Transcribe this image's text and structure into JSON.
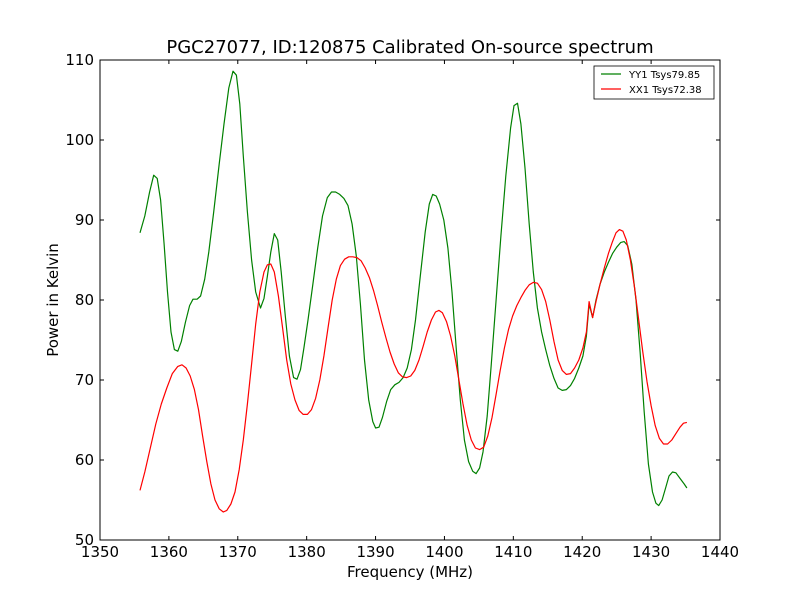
{
  "chart_data": {
    "type": "line",
    "title": "PGC27077, ID:120875 Calibrated On-source spectrum",
    "xlabel": "Frequency (MHz)",
    "ylabel": "Power in Kelvin",
    "xlim": [
      1350,
      1440
    ],
    "ylim": [
      50,
      110
    ],
    "xticks": [
      1350,
      1360,
      1370,
      1380,
      1390,
      1400,
      1410,
      1420,
      1430,
      1440
    ],
    "yticks": [
      50,
      60,
      70,
      80,
      90,
      100,
      110
    ],
    "grid": false,
    "legend_position": "top-right",
    "series": [
      {
        "name": "YY1 Tsys79.85",
        "color": "#008000",
        "points": [
          [
            1355.8,
            88.4
          ],
          [
            1356.5,
            90.5
          ],
          [
            1357.2,
            93.5
          ],
          [
            1357.8,
            95.6
          ],
          [
            1358.3,
            95.2
          ],
          [
            1358.8,
            92.5
          ],
          [
            1359.3,
            87.0
          ],
          [
            1359.8,
            81.0
          ],
          [
            1360.3,
            76.0
          ],
          [
            1360.8,
            73.8
          ],
          [
            1361.3,
            73.6
          ],
          [
            1361.8,
            74.8
          ],
          [
            1362.4,
            77.2
          ],
          [
            1363.0,
            79.3
          ],
          [
            1363.5,
            80.1
          ],
          [
            1364.1,
            80.1
          ],
          [
            1364.6,
            80.5
          ],
          [
            1365.2,
            82.6
          ],
          [
            1365.8,
            86.0
          ],
          [
            1366.5,
            91.0
          ],
          [
            1367.3,
            97.0
          ],
          [
            1368.0,
            102.0
          ],
          [
            1368.7,
            106.5
          ],
          [
            1369.3,
            108.6
          ],
          [
            1369.8,
            108.1
          ],
          [
            1370.3,
            104.5
          ],
          [
            1370.8,
            98.0
          ],
          [
            1371.4,
            91.0
          ],
          [
            1372.0,
            85.0
          ],
          [
            1372.6,
            81.0
          ],
          [
            1373.3,
            79.0
          ],
          [
            1373.8,
            80.2
          ],
          [
            1374.3,
            83.0
          ],
          [
            1374.8,
            86.0
          ],
          [
            1375.3,
            88.3
          ],
          [
            1375.8,
            87.5
          ],
          [
            1376.3,
            83.5
          ],
          [
            1376.9,
            78.0
          ],
          [
            1377.5,
            73.0
          ],
          [
            1378.1,
            70.3
          ],
          [
            1378.6,
            70.1
          ],
          [
            1379.1,
            71.3
          ],
          [
            1379.6,
            74.0
          ],
          [
            1380.2,
            77.5
          ],
          [
            1380.9,
            82.0
          ],
          [
            1381.6,
            86.5
          ],
          [
            1382.3,
            90.5
          ],
          [
            1383.0,
            92.8
          ],
          [
            1383.6,
            93.5
          ],
          [
            1384.2,
            93.5
          ],
          [
            1384.8,
            93.2
          ],
          [
            1385.4,
            92.7
          ],
          [
            1386.0,
            91.8
          ],
          [
            1386.6,
            89.5
          ],
          [
            1387.2,
            85.5
          ],
          [
            1387.8,
            79.5
          ],
          [
            1388.4,
            72.5
          ],
          [
            1389.0,
            67.5
          ],
          [
            1389.6,
            64.8
          ],
          [
            1390.0,
            64.0
          ],
          [
            1390.5,
            64.1
          ],
          [
            1391.0,
            65.3
          ],
          [
            1391.6,
            67.3
          ],
          [
            1392.2,
            68.8
          ],
          [
            1392.8,
            69.4
          ],
          [
            1393.4,
            69.7
          ],
          [
            1394.0,
            70.3
          ],
          [
            1394.6,
            71.5
          ],
          [
            1395.2,
            73.8
          ],
          [
            1395.8,
            77.5
          ],
          [
            1396.5,
            83.0
          ],
          [
            1397.2,
            88.5
          ],
          [
            1397.8,
            92.0
          ],
          [
            1398.3,
            93.2
          ],
          [
            1398.8,
            93.0
          ],
          [
            1399.3,
            92.0
          ],
          [
            1399.9,
            90.0
          ],
          [
            1400.5,
            86.5
          ],
          [
            1401.1,
            81.0
          ],
          [
            1401.7,
            74.0
          ],
          [
            1402.3,
            67.5
          ],
          [
            1402.9,
            62.5
          ],
          [
            1403.5,
            59.8
          ],
          [
            1404.1,
            58.6
          ],
          [
            1404.6,
            58.3
          ],
          [
            1405.1,
            59.0
          ],
          [
            1405.6,
            61.0
          ],
          [
            1406.2,
            65.5
          ],
          [
            1406.8,
            72.0
          ],
          [
            1407.5,
            80.0
          ],
          [
            1408.2,
            88.0
          ],
          [
            1408.9,
            95.5
          ],
          [
            1409.6,
            101.5
          ],
          [
            1410.1,
            104.3
          ],
          [
            1410.6,
            104.6
          ],
          [
            1411.1,
            102.0
          ],
          [
            1411.7,
            96.5
          ],
          [
            1412.3,
            89.5
          ],
          [
            1412.9,
            83.5
          ],
          [
            1413.5,
            79.0
          ],
          [
            1414.1,
            76.0
          ],
          [
            1414.7,
            73.8
          ],
          [
            1415.3,
            71.8
          ],
          [
            1415.9,
            70.2
          ],
          [
            1416.5,
            69.0
          ],
          [
            1417.1,
            68.7
          ],
          [
            1417.7,
            68.8
          ],
          [
            1418.3,
            69.3
          ],
          [
            1418.9,
            70.2
          ],
          [
            1419.5,
            71.5
          ],
          [
            1420.1,
            73.0
          ],
          [
            1420.6,
            75.5
          ],
          [
            1421.0,
            79.5
          ],
          [
            1421.5,
            77.8
          ],
          [
            1422.0,
            80.0
          ],
          [
            1422.6,
            82.0
          ],
          [
            1423.2,
            83.5
          ],
          [
            1423.8,
            84.7
          ],
          [
            1424.4,
            85.8
          ],
          [
            1425.0,
            86.6
          ],
          [
            1425.6,
            87.2
          ],
          [
            1426.1,
            87.3
          ],
          [
            1426.6,
            86.8
          ],
          [
            1427.2,
            84.5
          ],
          [
            1427.8,
            80.0
          ],
          [
            1428.4,
            73.5
          ],
          [
            1429.0,
            66.0
          ],
          [
            1429.6,
            59.5
          ],
          [
            1430.2,
            56.0
          ],
          [
            1430.7,
            54.6
          ],
          [
            1431.1,
            54.3
          ],
          [
            1431.6,
            55.0
          ],
          [
            1432.1,
            56.5
          ],
          [
            1432.6,
            58.0
          ],
          [
            1433.1,
            58.5
          ],
          [
            1433.6,
            58.4
          ],
          [
            1434.2,
            57.7
          ],
          [
            1434.8,
            57.0
          ],
          [
            1435.2,
            56.5
          ]
        ]
      },
      {
        "name": "XX1 Tsys72.38",
        "color": "#ff0000",
        "points": [
          [
            1355.8,
            56.2
          ],
          [
            1356.5,
            58.5
          ],
          [
            1357.3,
            61.5
          ],
          [
            1358.1,
            64.5
          ],
          [
            1358.9,
            67.0
          ],
          [
            1359.7,
            69.0
          ],
          [
            1360.5,
            70.8
          ],
          [
            1361.3,
            71.7
          ],
          [
            1361.9,
            71.9
          ],
          [
            1362.5,
            71.5
          ],
          [
            1363.1,
            70.5
          ],
          [
            1363.7,
            68.8
          ],
          [
            1364.3,
            66.3
          ],
          [
            1364.9,
            63.0
          ],
          [
            1365.5,
            59.8
          ],
          [
            1366.1,
            57.0
          ],
          [
            1366.7,
            55.0
          ],
          [
            1367.3,
            53.9
          ],
          [
            1367.9,
            53.5
          ],
          [
            1368.4,
            53.7
          ],
          [
            1369.0,
            54.5
          ],
          [
            1369.6,
            56.0
          ],
          [
            1370.2,
            58.8
          ],
          [
            1370.8,
            62.5
          ],
          [
            1371.4,
            67.0
          ],
          [
            1372.0,
            72.0
          ],
          [
            1372.6,
            77.0
          ],
          [
            1373.2,
            81.0
          ],
          [
            1373.8,
            83.5
          ],
          [
            1374.3,
            84.4
          ],
          [
            1374.8,
            84.5
          ],
          [
            1375.3,
            83.5
          ],
          [
            1375.9,
            80.5
          ],
          [
            1376.5,
            76.5
          ],
          [
            1377.1,
            72.5
          ],
          [
            1377.7,
            69.5
          ],
          [
            1378.3,
            67.5
          ],
          [
            1378.9,
            66.2
          ],
          [
            1379.5,
            65.7
          ],
          [
            1380.1,
            65.7
          ],
          [
            1380.7,
            66.3
          ],
          [
            1381.3,
            67.7
          ],
          [
            1381.9,
            70.0
          ],
          [
            1382.5,
            73.0
          ],
          [
            1383.1,
            76.5
          ],
          [
            1383.7,
            80.0
          ],
          [
            1384.3,
            82.6
          ],
          [
            1384.9,
            84.3
          ],
          [
            1385.5,
            85.1
          ],
          [
            1386.1,
            85.4
          ],
          [
            1386.7,
            85.4
          ],
          [
            1387.3,
            85.3
          ],
          [
            1387.9,
            84.9
          ],
          [
            1388.5,
            84.0
          ],
          [
            1389.1,
            82.8
          ],
          [
            1389.7,
            81.2
          ],
          [
            1390.3,
            79.3
          ],
          [
            1390.9,
            77.2
          ],
          [
            1391.5,
            75.3
          ],
          [
            1392.1,
            73.5
          ],
          [
            1392.7,
            72.0
          ],
          [
            1393.3,
            70.9
          ],
          [
            1393.9,
            70.4
          ],
          [
            1394.5,
            70.3
          ],
          [
            1395.1,
            70.5
          ],
          [
            1395.7,
            71.2
          ],
          [
            1396.3,
            72.5
          ],
          [
            1396.9,
            74.2
          ],
          [
            1397.5,
            76.0
          ],
          [
            1398.1,
            77.5
          ],
          [
            1398.7,
            78.5
          ],
          [
            1399.2,
            78.7
          ],
          [
            1399.7,
            78.4
          ],
          [
            1400.3,
            77.3
          ],
          [
            1400.9,
            75.5
          ],
          [
            1401.5,
            73.0
          ],
          [
            1402.1,
            70.0
          ],
          [
            1402.7,
            67.0
          ],
          [
            1403.3,
            64.3
          ],
          [
            1403.9,
            62.5
          ],
          [
            1404.5,
            61.5
          ],
          [
            1405.1,
            61.3
          ],
          [
            1405.7,
            61.6
          ],
          [
            1406.3,
            63.0
          ],
          [
            1406.9,
            65.3
          ],
          [
            1407.5,
            68.2
          ],
          [
            1408.1,
            71.2
          ],
          [
            1408.7,
            74.0
          ],
          [
            1409.3,
            76.3
          ],
          [
            1409.9,
            78.0
          ],
          [
            1410.5,
            79.3
          ],
          [
            1411.1,
            80.3
          ],
          [
            1411.7,
            81.2
          ],
          [
            1412.3,
            81.9
          ],
          [
            1412.9,
            82.2
          ],
          [
            1413.5,
            82.1
          ],
          [
            1414.1,
            81.3
          ],
          [
            1414.7,
            79.8
          ],
          [
            1415.3,
            77.5
          ],
          [
            1415.9,
            74.8
          ],
          [
            1416.5,
            72.5
          ],
          [
            1417.1,
            71.2
          ],
          [
            1417.7,
            70.7
          ],
          [
            1418.3,
            70.8
          ],
          [
            1418.9,
            71.5
          ],
          [
            1419.5,
            72.5
          ],
          [
            1420.1,
            74.0
          ],
          [
            1420.6,
            76.0
          ],
          [
            1421.0,
            79.8
          ],
          [
            1421.5,
            77.8
          ],
          [
            1422.0,
            79.8
          ],
          [
            1422.6,
            82.0
          ],
          [
            1423.2,
            84.0
          ],
          [
            1423.8,
            85.8
          ],
          [
            1424.4,
            87.3
          ],
          [
            1424.9,
            88.4
          ],
          [
            1425.4,
            88.8
          ],
          [
            1425.9,
            88.6
          ],
          [
            1426.4,
            87.5
          ],
          [
            1427.0,
            85.0
          ],
          [
            1427.6,
            81.5
          ],
          [
            1428.2,
            77.5
          ],
          [
            1428.8,
            73.5
          ],
          [
            1429.4,
            69.8
          ],
          [
            1430.0,
            66.8
          ],
          [
            1430.6,
            64.3
          ],
          [
            1431.2,
            62.7
          ],
          [
            1431.8,
            62.0
          ],
          [
            1432.4,
            62.0
          ],
          [
            1433.0,
            62.5
          ],
          [
            1433.6,
            63.3
          ],
          [
            1434.2,
            64.1
          ],
          [
            1434.7,
            64.6
          ],
          [
            1435.2,
            64.7
          ]
        ]
      }
    ]
  }
}
